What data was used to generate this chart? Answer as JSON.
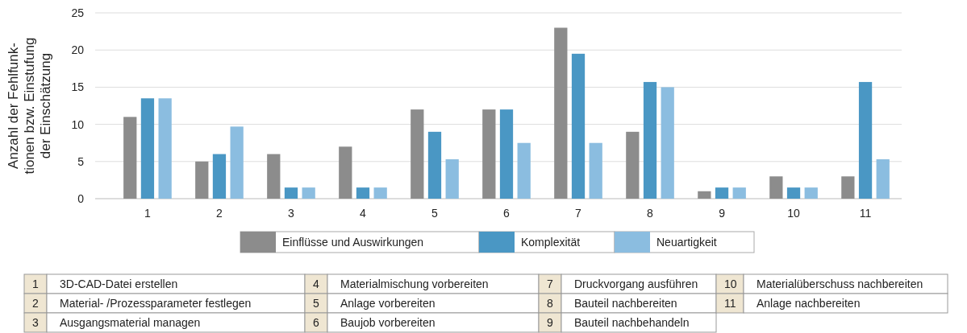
{
  "chart_data": {
    "type": "bar",
    "ylabel": "Anzahl der Fehlfunk-\ntionen bzw. Einstufung\nder Einschätzung",
    "categories": [
      "1",
      "2",
      "3",
      "4",
      "5",
      "6",
      "7",
      "8",
      "9",
      "10",
      "11"
    ],
    "series": [
      {
        "name": "Einflüsse und Auswirkungen",
        "color": "#8c8c8c",
        "values": [
          11,
          5,
          6,
          7,
          12,
          12,
          23,
          9,
          1,
          3,
          3
        ]
      },
      {
        "name": "Komplexität",
        "color": "#4a97c4",
        "values": [
          13.5,
          6,
          1.5,
          1.5,
          9,
          12,
          19.5,
          15.7,
          1.5,
          1.5,
          15.7
        ]
      },
      {
        "name": "Neuartigkeit",
        "color": "#8bbde0",
        "values": [
          13.5,
          9.7,
          1.5,
          1.5,
          5.3,
          7.5,
          7.5,
          15,
          1.5,
          1.5,
          5.3
        ]
      }
    ],
    "ylim": [
      0,
      25
    ],
    "yticks": [
      0,
      5,
      10,
      15,
      20,
      25
    ],
    "grid": "y",
    "legend": "bottom",
    "annotations": [
      "1 3D-CAD-Datei erstellen",
      "2 Material- /Prozessparameter festlegen",
      "3 Ausgangsmaterial managen",
      "4 Materialmischung vorbereiten",
      "5 Anlage vorbereiten",
      "6 Baujob vorbereiten",
      "7 Druckvorgang ausführen",
      "8 Bauteil nachbereiten",
      "9 Bauteil nachbehandeln",
      "10 Materialüberschuss nachbereiten",
      "11 Anlage nachbereiten"
    ]
  }
}
